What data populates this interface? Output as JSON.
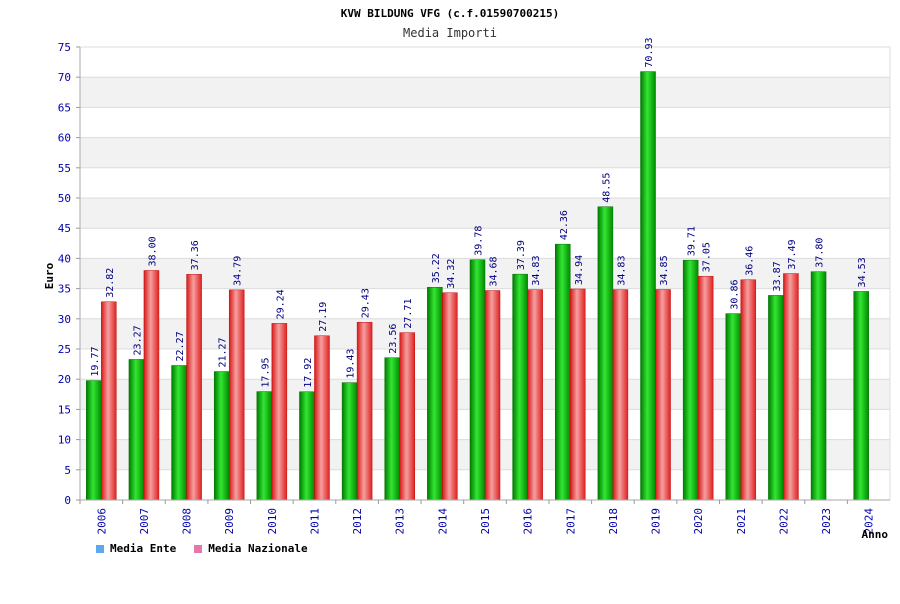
{
  "chart_data": {
    "type": "bar",
    "title": "KVW BILDUNG VFG (c.f.01590700215)",
    "subtitle": "Media Importi",
    "xlabel": "Anno",
    "ylabel": "Euro",
    "ylim": [
      0,
      75
    ],
    "yticks": [
      0,
      5,
      10,
      15,
      20,
      25,
      30,
      35,
      40,
      45,
      50,
      55,
      60,
      65,
      70,
      75
    ],
    "grid": true,
    "legend_position": "bottom-left",
    "categories": [
      "2006",
      "2007",
      "2008",
      "2009",
      "2010",
      "2011",
      "2012",
      "2013",
      "2014",
      "2015",
      "2016",
      "2017",
      "2018",
      "2019",
      "2020",
      "2021",
      "2022",
      "2023",
      "2024"
    ],
    "series": [
      {
        "name": "Media Ente",
        "color": "#00b400",
        "legend_color": "#5fa8f0",
        "values": [
          19.77,
          23.27,
          22.27,
          21.27,
          17.95,
          17.92,
          19.43,
          23.56,
          35.22,
          39.78,
          37.39,
          42.36,
          48.55,
          70.93,
          39.71,
          30.86,
          33.87,
          37.8,
          34.53
        ],
        "labels": [
          "19.77",
          "23.27",
          "22.27",
          "21.27",
          "17.95",
          "17.92",
          "19.43",
          "23.56",
          "35.22",
          "39.78",
          "37.39",
          "42.36",
          "48.55",
          "70.93",
          "39.71",
          "30.86",
          "33.87",
          "37.80",
          "34.53"
        ]
      },
      {
        "name": "Media Nazionale",
        "color": "#f03030",
        "legend_color": "#e07aa8",
        "values": [
          32.82,
          38.0,
          37.36,
          34.79,
          29.24,
          27.19,
          29.43,
          27.71,
          34.32,
          34.68,
          34.83,
          34.94,
          34.83,
          34.85,
          37.05,
          36.46,
          37.49,
          null,
          null
        ],
        "labels": [
          "32.82",
          "38.00",
          "37.36",
          "34.79",
          "29.24",
          "27.19",
          "29.43",
          "27.71",
          "34.32",
          "34.68",
          "34.83",
          "34.94",
          "34.83",
          "34.85",
          "37.05",
          "36.46",
          "37.49",
          null,
          null
        ]
      }
    ]
  }
}
